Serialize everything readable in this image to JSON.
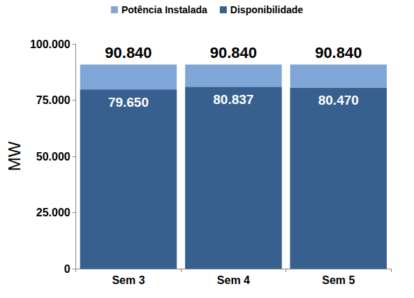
{
  "chart_data": {
    "type": "bar",
    "categories": [
      "Sem 3",
      "Sem 4",
      "Sem 5"
    ],
    "series": [
      {
        "name": "Potência Instalada",
        "color": "#7fa6d6",
        "values": [
          90840,
          90840,
          90840
        ],
        "value_labels": [
          "90.840",
          "90.840",
          "90.840"
        ]
      },
      {
        "name": "Disponibilidade",
        "color": "#37608f",
        "values": [
          79650,
          80837,
          80470
        ],
        "value_labels": [
          "79.650",
          "80.837",
          "80.470"
        ]
      }
    ],
    "y_label": "MW",
    "ylim": [
      0,
      100000
    ],
    "yticks": [
      0,
      {
        "value": 25000,
        "label": "25.000"
      },
      {
        "value": 50000,
        "label": "50.000"
      },
      {
        "value": 75000,
        "label": "75.000"
      },
      {
        "value": 100000,
        "label": "100.000"
      }
    ],
    "grid": false,
    "legend": "top",
    "data_labels": true,
    "stacked": false
  }
}
